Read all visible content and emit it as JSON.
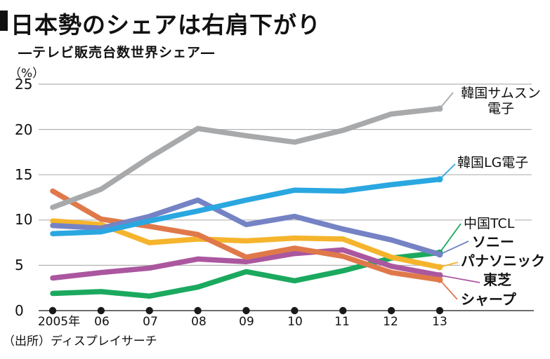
{
  "title": "日本勢のシェアは右肩下がり",
  "subtitle": "―テレビ販売台数世界シェア―",
  "unit_label": "（%）",
  "source": "（出所）ディスプレイサーチ",
  "chart_data": {
    "type": "line",
    "title": "テレビ販売台数世界シェア",
    "ylabel": "%",
    "ylim": [
      0,
      25
    ],
    "grid": "horizontal",
    "legend_position": "right-edge-labels",
    "x_categories": [
      "2005年",
      "06",
      "07",
      "08",
      "09",
      "10",
      "11",
      "12",
      "13"
    ],
    "y_ticks": [
      "25",
      "20",
      "15",
      "10",
      "5",
      "0"
    ],
    "series": [
      {
        "name": "samsung",
        "label": "韓国サムスン電子",
        "color": "#a7a9ab",
        "bold": false,
        "values": [
          11.4,
          13.4,
          16.9,
          20.1,
          19.3,
          18.6,
          19.9,
          21.7,
          22.3
        ]
      },
      {
        "name": "lg",
        "label": "韓国LG電子",
        "color": "#2aa7e0",
        "bold": false,
        "values": [
          8.5,
          8.7,
          9.9,
          11.0,
          12.2,
          13.3,
          13.2,
          13.9,
          14.5
        ]
      },
      {
        "name": "tcl",
        "label": "中国TCL",
        "color": "#1ba95f",
        "bold": false,
        "values": [
          1.9,
          2.1,
          1.6,
          2.6,
          4.3,
          3.3,
          4.4,
          5.8,
          6.4
        ]
      },
      {
        "name": "sony",
        "label": "ソニー",
        "color": "#7583c5",
        "bold": true,
        "values": [
          9.4,
          9.1,
          10.4,
          12.2,
          9.5,
          10.4,
          9.0,
          7.8,
          6.2
        ]
      },
      {
        "name": "panasonic",
        "label": "パナソニック",
        "color": "#f5b42c",
        "bold": true,
        "values": [
          9.9,
          9.5,
          7.5,
          7.9,
          7.7,
          8.0,
          7.9,
          5.9,
          4.8
        ]
      },
      {
        "name": "toshiba",
        "label": "東芝",
        "color": "#ab579f",
        "bold": true,
        "values": [
          3.6,
          4.2,
          4.7,
          5.7,
          5.4,
          6.3,
          6.7,
          4.9,
          3.9
        ]
      },
      {
        "name": "sharp",
        "label": "シャープ",
        "color": "#e0794a",
        "bold": true,
        "values": [
          13.2,
          10.1,
          9.3,
          8.4,
          5.9,
          6.9,
          6.0,
          4.2,
          3.4
        ]
      }
    ]
  }
}
